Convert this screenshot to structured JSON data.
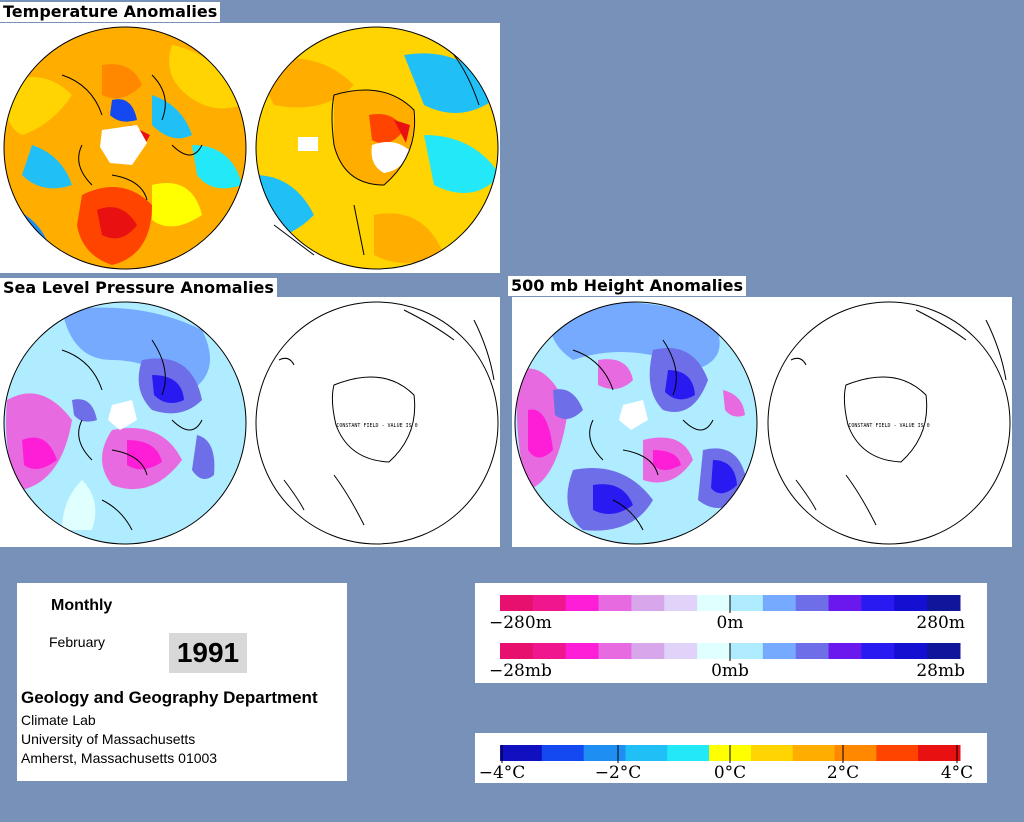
{
  "sections": {
    "temperature": {
      "title": "Temperature Anomalies"
    },
    "slp": {
      "title": "Sea Level Pressure Anomalies",
      "constant_text": "CONSTANT FIELD - VALUE IS 0"
    },
    "height500": {
      "title": "500 mb Height Anomalies",
      "constant_text": "CONSTANT FIELD - VALUE IS 0"
    }
  },
  "info": {
    "period": "Monthly",
    "month": "February",
    "year": "1991",
    "department": "Geology and Geography Department",
    "lab": "Climate Lab",
    "university": "University of Massachusetts",
    "address": "Amherst, Massachusetts 01003"
  },
  "scales": {
    "height": {
      "min": "−280m",
      "mid": "0m",
      "max": "280m"
    },
    "pressure": {
      "min": "−28mb",
      "mid": "0mb",
      "max": "28mb"
    },
    "temperature": {
      "labels": [
        "−4°C",
        "−2°C",
        "0°C",
        "2°C",
        "4°C"
      ]
    }
  },
  "colors": {
    "background": "#7891b8",
    "anomaly_ramp": [
      "#e8106e",
      "#f0168e",
      "#ff1ed8",
      "#e86ae0",
      "#d8a6ea",
      "#e0d2f8",
      "#e0ffff",
      "#b0ecff",
      "#76aaff",
      "#6e6ee8",
      "#6a18ee",
      "#2a1af2",
      "#1410d2",
      "#10169a"
    ],
    "temperature_ramp": [
      "#1010c0",
      "#1448f0",
      "#1e8ef2",
      "#20c0f6",
      "#22e8f8",
      "#ffff00",
      "#ffd400",
      "#ffae00",
      "#ff8800",
      "#ff4400",
      "#e81010"
    ]
  }
}
